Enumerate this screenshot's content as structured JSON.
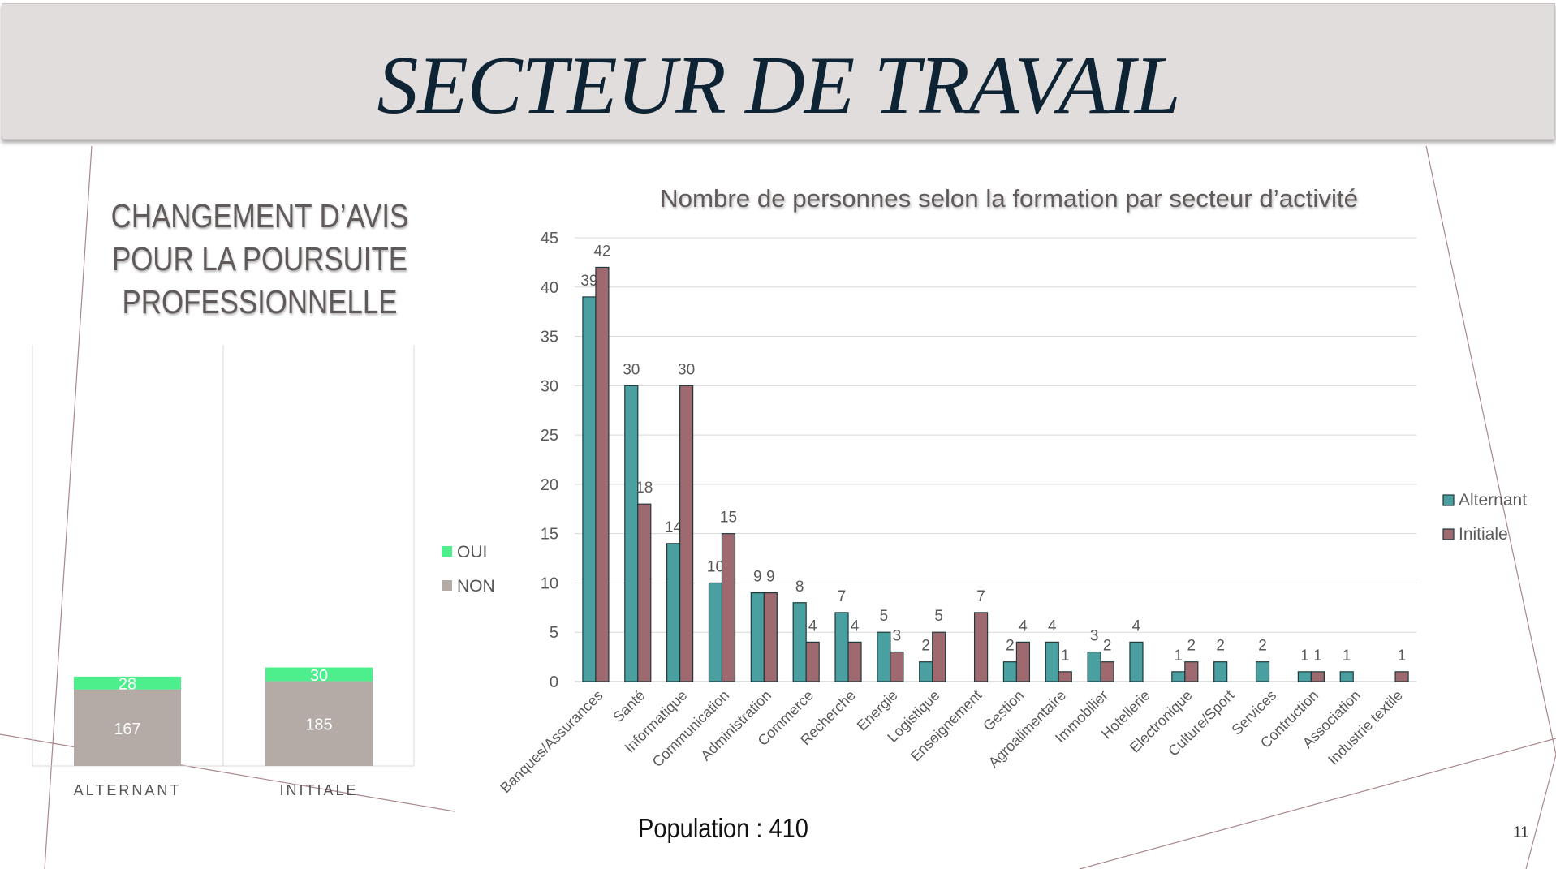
{
  "slide": {
    "title": "SECTEUR DE TRAVAIL",
    "left_heading": [
      "CHANGEMENT D’AVIS",
      "POUR LA POURSUITE",
      "PROFESSIONNELLE"
    ],
    "population": "Population : 410",
    "page_number": "11"
  },
  "colors": {
    "title_bar": "#e0dddc",
    "title_text": "#0e2333",
    "oui": "#4def8c",
    "non": "#b4aba6",
    "alternant": "#4a9fa1",
    "initiale": "#9e6a70",
    "deco_lines": "#a9888c"
  },
  "chart_data": [
    {
      "type": "bar",
      "stacked": true,
      "categories": [
        "ALTERNANT",
        "INITIALE"
      ],
      "series": [
        {
          "name": "NON",
          "values": [
            167,
            185
          ]
        },
        {
          "name": "OUI",
          "values": [
            28,
            30
          ]
        }
      ],
      "legend_order": [
        "OUI",
        "NON"
      ],
      "legend_position": "right",
      "data_labels": true,
      "grid": false
    },
    {
      "type": "bar",
      "title": "Nombre de personnes selon la formation par secteur d’activité",
      "categories": [
        "Banques/Assurances",
        "Santé",
        "Informatique",
        "Communication",
        "Administration",
        "Commerce",
        "Recherche",
        "Energie",
        "Logistique",
        "Enseignement",
        "Gestion",
        "Agroalimentaire",
        "Immobilier",
        "Hotellerie",
        "Electronique",
        "Culture/Sport",
        "Services",
        "Contruction",
        "Association",
        "Industrie textile"
      ],
      "series": [
        {
          "name": "Alternant",
          "values": [
            39,
            30,
            14,
            10,
            9,
            8,
            7,
            5,
            2,
            null,
            2,
            4,
            3,
            4,
            1,
            2,
            2,
            1,
            1,
            null
          ]
        },
        {
          "name": "Initiale",
          "values": [
            42,
            18,
            30,
            15,
            9,
            4,
            4,
            3,
            5,
            7,
            4,
            1,
            2,
            null,
            2,
            null,
            null,
            1,
            null,
            1
          ]
        }
      ],
      "ylim": [
        0,
        45
      ],
      "yticks": [
        "0",
        "5",
        "10",
        "15",
        "20",
        "25",
        "30",
        "35",
        "40",
        "45"
      ],
      "grid": true,
      "legend_position": "right",
      "data_labels": true
    }
  ]
}
